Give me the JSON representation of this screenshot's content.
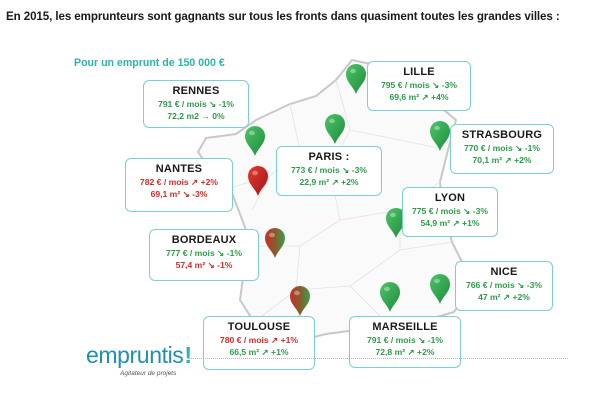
{
  "headline": "En 2015, les emprunteurs sont gagnants sur tous les fronts dans quasiment toutes les grandes villes :",
  "subhead": "Pour un emprunt de 150 000 €",
  "logo": {
    "text": "empruntis",
    "mark": "!",
    "tagline": "Agitateur de projets"
  },
  "colors": {
    "green": "#2e9c4a",
    "red": "#d42b2b",
    "accent": "#2bb3ad",
    "card_border": "#7ccfd1",
    "map_outline": "#c8c8c8"
  },
  "cities": [
    {
      "id": "rennes",
      "name": "RENNES",
      "monthly": "791 € / mois ↘ -1%",
      "area": "72,2 m2 → 0%",
      "monthly_color": "green",
      "area_color": "green",
      "pin": "green"
    },
    {
      "id": "nantes",
      "name": "NANTES",
      "monthly": "782 € / mois ↗ +2%",
      "area": "69,1 m² ↘ -3%",
      "monthly_color": "red",
      "area_color": "red",
      "pin": "red"
    },
    {
      "id": "bordeaux",
      "name": "BORDEAUX",
      "monthly": "777 € / mois ↘ -1%",
      "area": "57,4 m² ↘ -1%",
      "monthly_color": "green",
      "area_color": "red",
      "pin": "mixed"
    },
    {
      "id": "toulouse",
      "name": "TOULOUSE",
      "monthly": "780 € / mois ↗ +1%",
      "area": "66,5 m² ↗ +1%",
      "monthly_color": "red",
      "area_color": "green",
      "pin": "mixed"
    },
    {
      "id": "paris",
      "name": "PARIS :",
      "monthly": "773 € / mois ↘ -3%",
      "area": "22,9 m² ↗ +2%",
      "monthly_color": "green",
      "area_color": "green",
      "pin": "green"
    },
    {
      "id": "lille",
      "name": "LILLE",
      "monthly": "795 € / mois ↘ -3%",
      "area": "69,6 m² ↗ +4%",
      "monthly_color": "green",
      "area_color": "green",
      "pin": "green"
    },
    {
      "id": "strasbourg",
      "name": "STRASBOURG",
      "monthly": "770 € / mois ↘ -1%",
      "area": "70,1 m² ↗ +2%",
      "monthly_color": "green",
      "area_color": "green",
      "pin": "green"
    },
    {
      "id": "lyon",
      "name": "LYON",
      "monthly": "775 € / mois ↘ -3%",
      "area": "54,9 m² ↗ +1%",
      "monthly_color": "green",
      "area_color": "green",
      "pin": "green"
    },
    {
      "id": "nice",
      "name": "NICE",
      "monthly": "766 € / mois ↘ -3%",
      "area": "47 m² ↗ +2%",
      "monthly_color": "green",
      "area_color": "green",
      "pin": "green"
    },
    {
      "id": "marseille",
      "name": "MARSEILLE",
      "monthly": "791 € / mois ↘ -1%",
      "area": "72,8 m² ↗ +2%",
      "monthly_color": "green",
      "area_color": "green",
      "pin": "green"
    }
  ]
}
